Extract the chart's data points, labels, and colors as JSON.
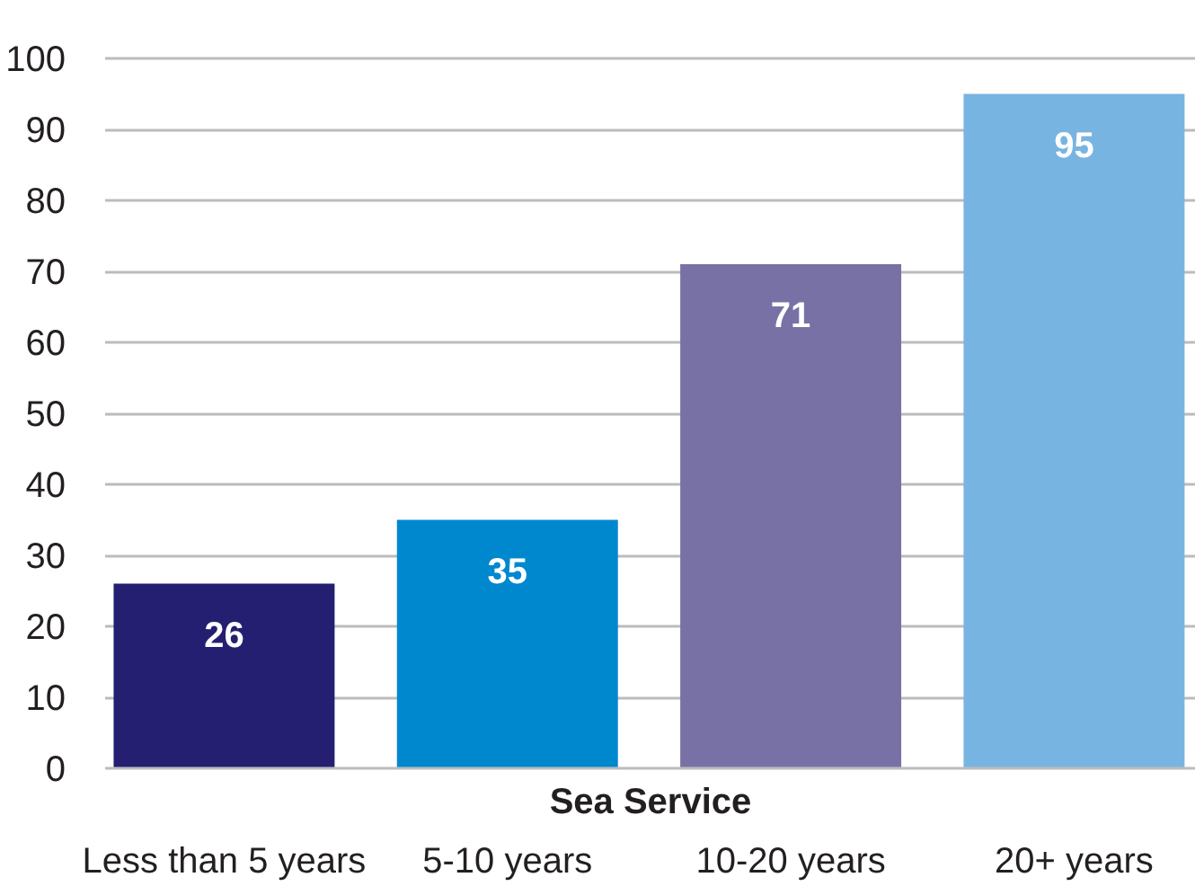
{
  "chart_data": {
    "type": "bar",
    "xlabel": "Sea Service",
    "categories": [
      "Less than 5 years",
      "5-10 years",
      "10-20 years",
      "20+ years"
    ],
    "values": [
      26,
      35,
      71,
      95
    ],
    "colors": [
      "#241f70",
      "#0088cf",
      "#7871a6",
      "#78b4e2"
    ],
    "ylim": [
      0,
      100
    ],
    "yticks": [
      0,
      10,
      20,
      30,
      40,
      50,
      60,
      70,
      80,
      90,
      100
    ],
    "grid": "y",
    "data_labels": true
  }
}
